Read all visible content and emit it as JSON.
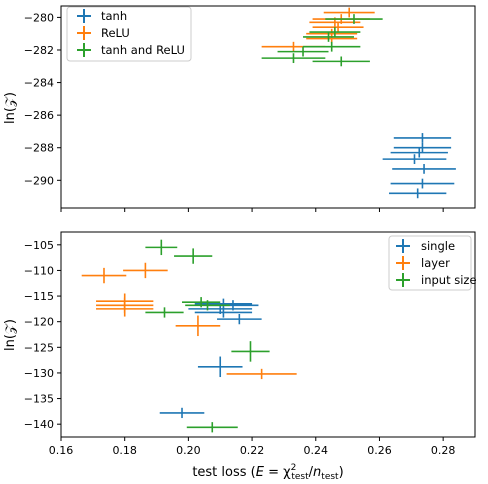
{
  "colors": {
    "blue": "#1f77b4",
    "orange": "#ff7f0e",
    "green": "#2ca02c"
  },
  "chart_data": [
    {
      "type": "scatter",
      "ylabel": "ln(𝒵)",
      "xlim": [
        0.16,
        0.29
      ],
      "ylim": [
        -291.7,
        -279.3
      ],
      "yticks": [
        -280,
        -282,
        -284,
        -286,
        -288,
        -290
      ],
      "ytick_labels": [
        "−280",
        "−282",
        "−284",
        "−286",
        "−288",
        "−290"
      ],
      "grid": false,
      "legend": "top-left",
      "series": [
        {
          "name": "tanh",
          "color": "#1f77b4",
          "points": [
            {
              "x": 0.2735,
              "y": -287.4,
              "xerr": 0.009,
              "yerr": 0.3
            },
            {
              "x": 0.2735,
              "y": -288.0,
              "xerr": 0.009,
              "yerr": 0.3
            },
            {
              "x": 0.2725,
              "y": -288.3,
              "xerr": 0.009,
              "yerr": 0.3
            },
            {
              "x": 0.271,
              "y": -288.7,
              "xerr": 0.01,
              "yerr": 0.3
            },
            {
              "x": 0.274,
              "y": -289.3,
              "xerr": 0.01,
              "yerr": 0.3
            },
            {
              "x": 0.2735,
              "y": -290.2,
              "xerr": 0.01,
              "yerr": 0.3
            },
            {
              "x": 0.272,
              "y": -290.8,
              "xerr": 0.009,
              "yerr": 0.3
            }
          ]
        },
        {
          "name": "ReLU",
          "color": "#ff7f0e",
          "points": [
            {
              "x": 0.2505,
              "y": -279.7,
              "xerr": 0.008,
              "yerr": 0.3
            },
            {
              "x": 0.248,
              "y": -280.1,
              "xerr": 0.009,
              "yerr": 0.3
            },
            {
              "x": 0.246,
              "y": -280.3,
              "xerr": 0.008,
              "yerr": 0.3
            },
            {
              "x": 0.247,
              "y": -280.6,
              "xerr": 0.008,
              "yerr": 0.3
            },
            {
              "x": 0.245,
              "y": -281.0,
              "xerr": 0.008,
              "yerr": 0.3
            },
            {
              "x": 0.245,
              "y": -281.3,
              "xerr": 0.008,
              "yerr": 0.3
            },
            {
              "x": 0.233,
              "y": -281.8,
              "xerr": 0.01,
              "yerr": 0.3
            }
          ]
        },
        {
          "name": "tanh and ReLU",
          "color": "#2ca02c",
          "points": [
            {
              "x": 0.252,
              "y": -280.1,
              "xerr": 0.009,
              "yerr": 0.3
            },
            {
              "x": 0.246,
              "y": -280.9,
              "xerr": 0.008,
              "yerr": 0.3
            },
            {
              "x": 0.244,
              "y": -281.2,
              "xerr": 0.008,
              "yerr": 0.3
            },
            {
              "x": 0.245,
              "y": -281.8,
              "xerr": 0.009,
              "yerr": 0.3
            },
            {
              "x": 0.236,
              "y": -282.1,
              "xerr": 0.008,
              "yerr": 0.3
            },
            {
              "x": 0.233,
              "y": -282.5,
              "xerr": 0.01,
              "yerr": 0.3
            },
            {
              "x": 0.248,
              "y": -282.7,
              "xerr": 0.009,
              "yerr": 0.3
            }
          ]
        }
      ]
    },
    {
      "type": "scatter",
      "xlabel": "test loss (E = χ²test/ntest)",
      "ylabel": "ln(𝒵)",
      "xlim": [
        0.16,
        0.29
      ],
      "ylim": [
        -142.5,
        -102.5
      ],
      "xticks": [
        0.16,
        0.18,
        0.2,
        0.22,
        0.24,
        0.26,
        0.28
      ],
      "xtick_labels": [
        "0.16",
        "0.18",
        "0.20",
        "0.22",
        "0.24",
        "0.26",
        "0.28"
      ],
      "yticks": [
        -105,
        -110,
        -115,
        -120,
        -125,
        -130,
        -135,
        -140
      ],
      "ytick_labels": [
        "−105",
        "−110",
        "−115",
        "−120",
        "−125",
        "−130",
        "−135",
        "−140"
      ],
      "grid": false,
      "legend": "top-right",
      "series": [
        {
          "name": "single",
          "color": "#1f77b4",
          "points": [
            {
              "x": 0.211,
              "y": -116.5,
              "xerr": 0.009,
              "yerr": 1.0
            },
            {
              "x": 0.214,
              "y": -116.8,
              "xerr": 0.008,
              "yerr": 1.0
            },
            {
              "x": 0.21,
              "y": -117.5,
              "xerr": 0.01,
              "yerr": 1.0
            },
            {
              "x": 0.211,
              "y": -118.2,
              "xerr": 0.009,
              "yerr": 1.0
            },
            {
              "x": 0.216,
              "y": -119.5,
              "xerr": 0.007,
              "yerr": 1.0
            },
            {
              "x": 0.21,
              "y": -128.8,
              "xerr": 0.007,
              "yerr": 2.0
            },
            {
              "x": 0.198,
              "y": -137.8,
              "xerr": 0.007,
              "yerr": 1.0
            }
          ]
        },
        {
          "name": "layer",
          "color": "#ff7f0e",
          "points": [
            {
              "x": 0.1735,
              "y": -111.0,
              "xerr": 0.007,
              "yerr": 1.5
            },
            {
              "x": 0.1865,
              "y": -110.0,
              "xerr": 0.007,
              "yerr": 1.5
            },
            {
              "x": 0.18,
              "y": -116.0,
              "xerr": 0.009,
              "yerr": 1.5
            },
            {
              "x": 0.18,
              "y": -116.8,
              "xerr": 0.009,
              "yerr": 1.5
            },
            {
              "x": 0.18,
              "y": -117.5,
              "xerr": 0.009,
              "yerr": 1.5
            },
            {
              "x": 0.203,
              "y": -120.8,
              "xerr": 0.007,
              "yerr": 2.0
            },
            {
              "x": 0.223,
              "y": -130.2,
              "xerr": 0.011,
              "yerr": 1.0
            }
          ]
        },
        {
          "name": "input size",
          "color": "#2ca02c",
          "points": [
            {
              "x": 0.1915,
              "y": -105.5,
              "xerr": 0.005,
              "yerr": 1.5
            },
            {
              "x": 0.2015,
              "y": -107.2,
              "xerr": 0.006,
              "yerr": 1.5
            },
            {
              "x": 0.204,
              "y": -116.2,
              "xerr": 0.006,
              "yerr": 1.0
            },
            {
              "x": 0.206,
              "y": -116.8,
              "xerr": 0.007,
              "yerr": 1.0
            },
            {
              "x": 0.1925,
              "y": -118.2,
              "xerr": 0.006,
              "yerr": 1.0
            },
            {
              "x": 0.2195,
              "y": -125.8,
              "xerr": 0.006,
              "yerr": 2.0
            },
            {
              "x": 0.2075,
              "y": -140.6,
              "xerr": 0.008,
              "yerr": 1.0
            }
          ]
        }
      ]
    }
  ]
}
